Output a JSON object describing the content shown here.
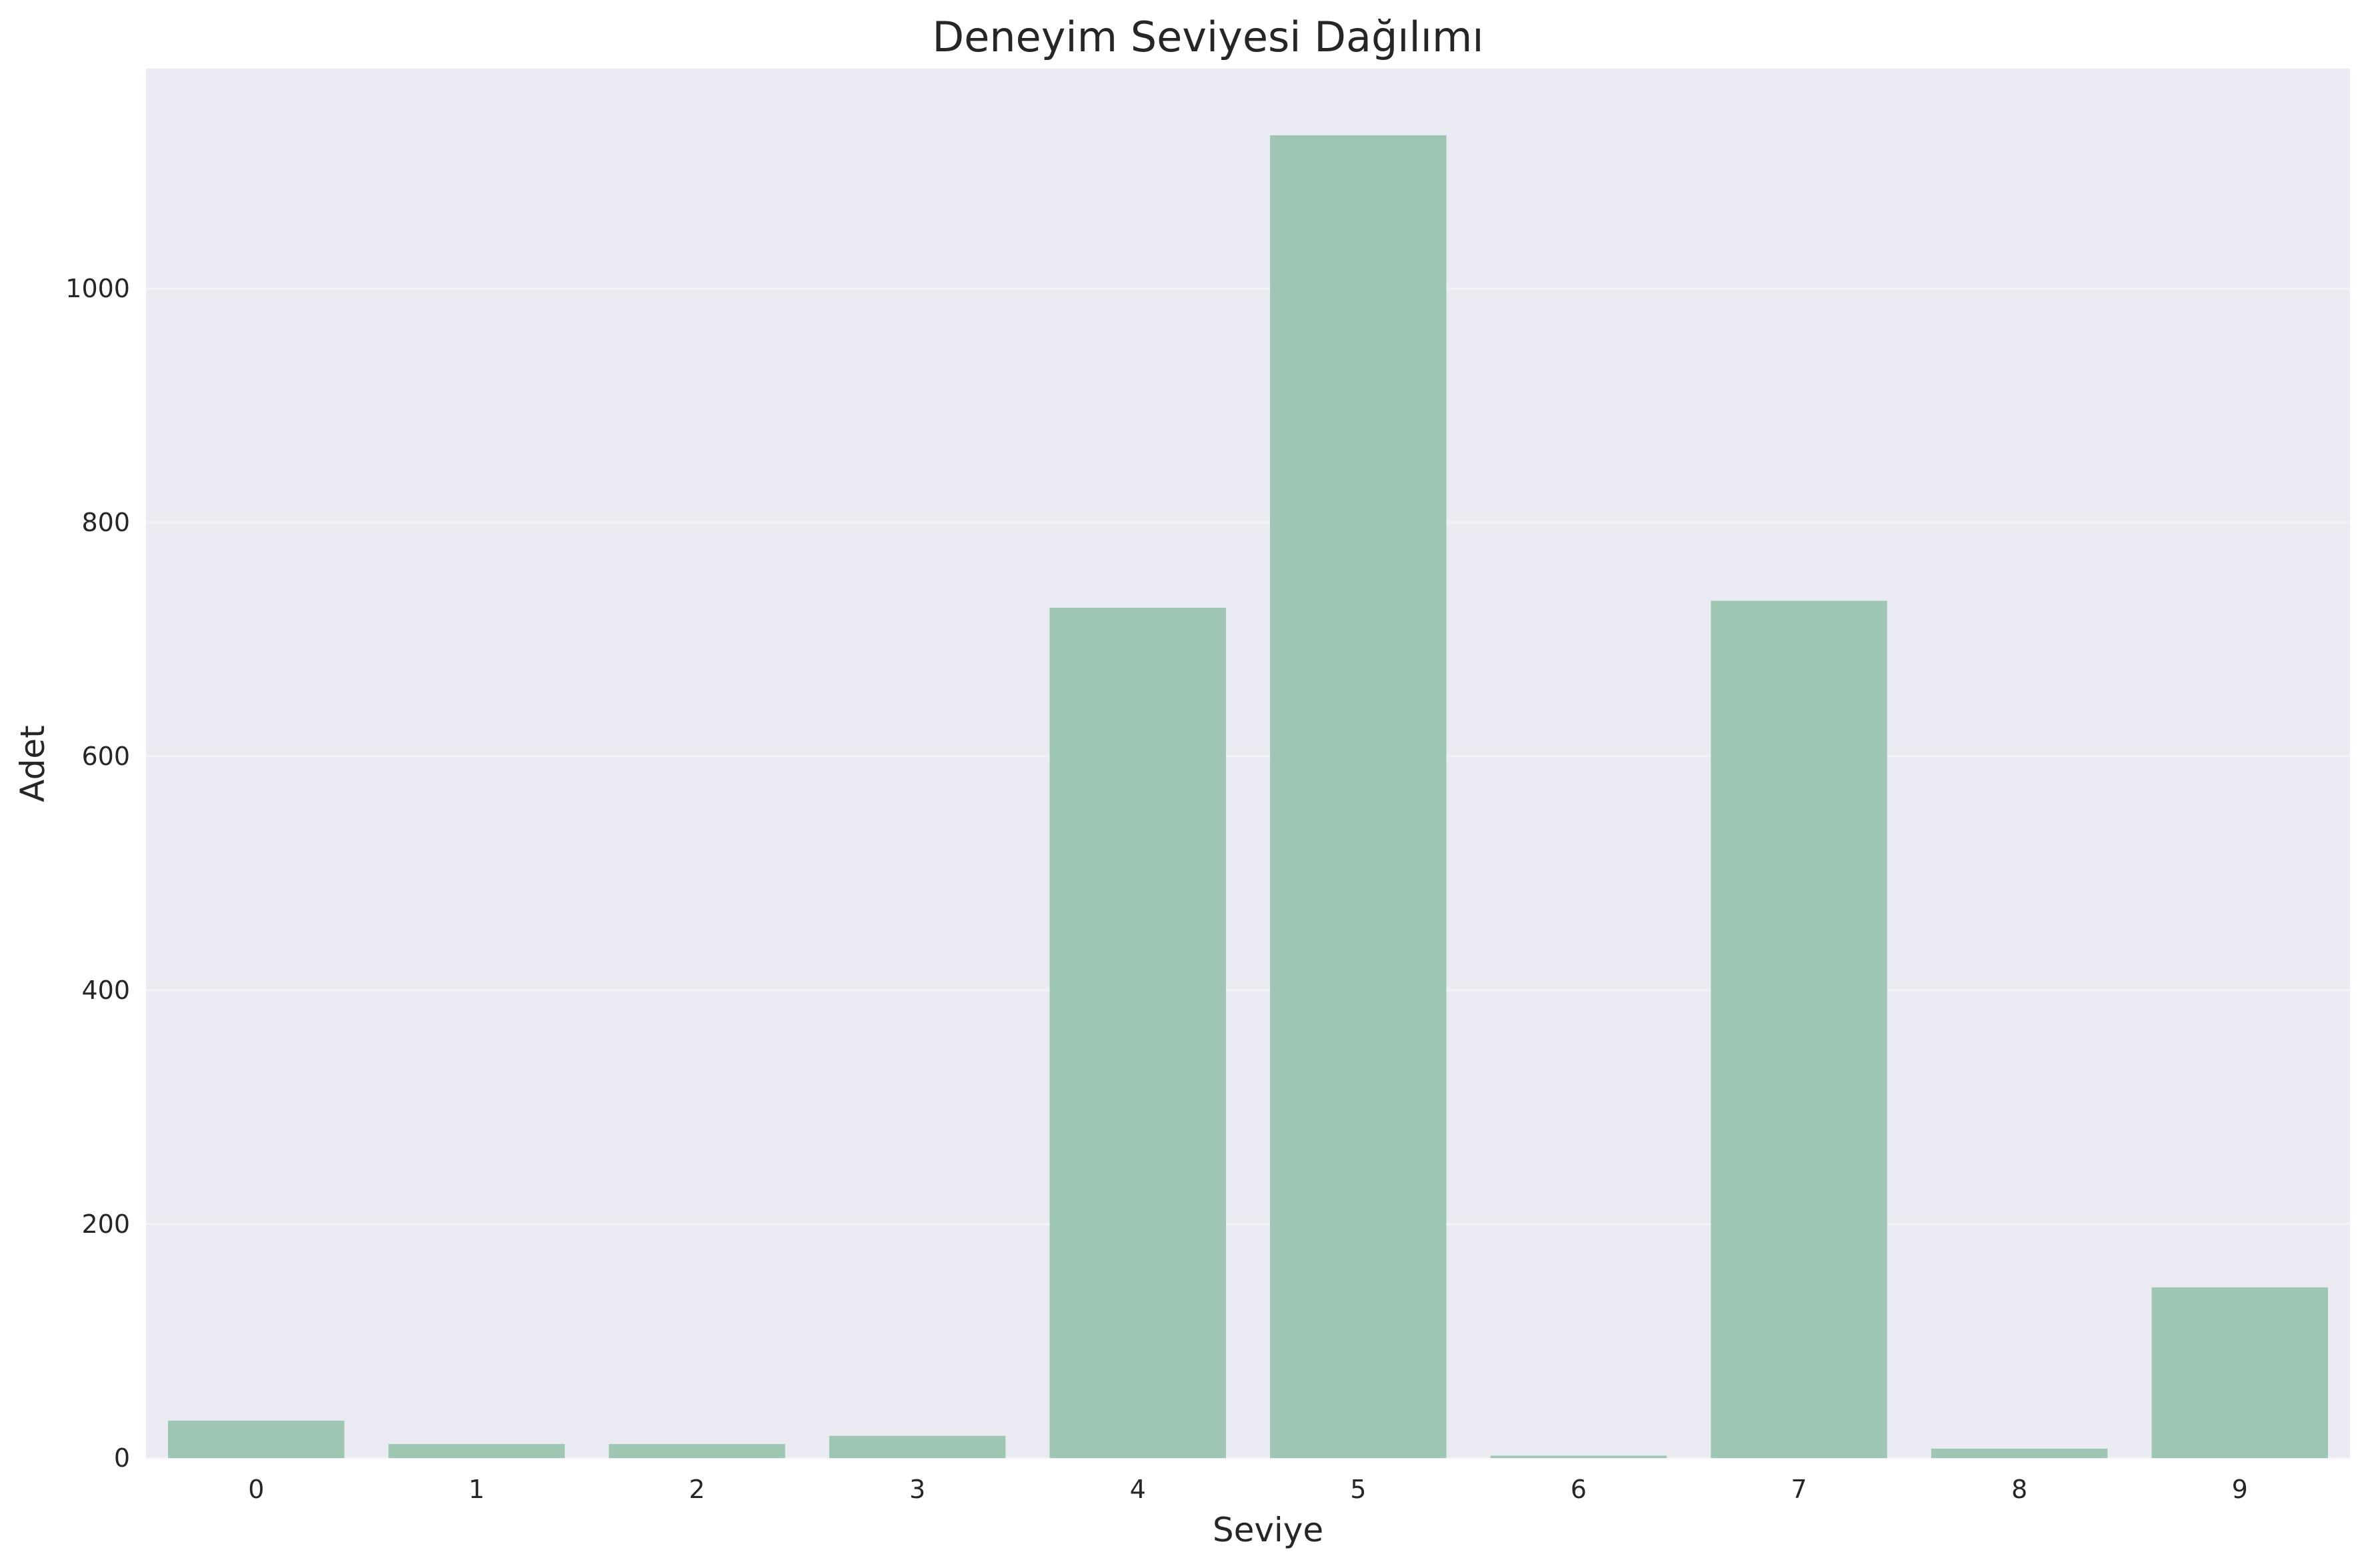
{
  "chart_data": {
    "type": "bar",
    "title": "Deneyim Seviyesi Dağılımı",
    "xlabel": "Seviye",
    "ylabel": "Adet",
    "categories": [
      "0",
      "1",
      "2",
      "3",
      "4",
      "5",
      "6",
      "7",
      "8",
      "9"
    ],
    "values": [
      32,
      12,
      12,
      19,
      727,
      1131,
      2,
      733,
      8,
      146
    ],
    "yticks": [
      0,
      200,
      400,
      600,
      800,
      1000
    ],
    "ylim": [
      0,
      1188
    ],
    "grid": true,
    "colors": {
      "bar": "#9ec6b3",
      "plot_background": "#eaeaf2",
      "grid": "#f3f3f7",
      "text": "#262626"
    }
  }
}
